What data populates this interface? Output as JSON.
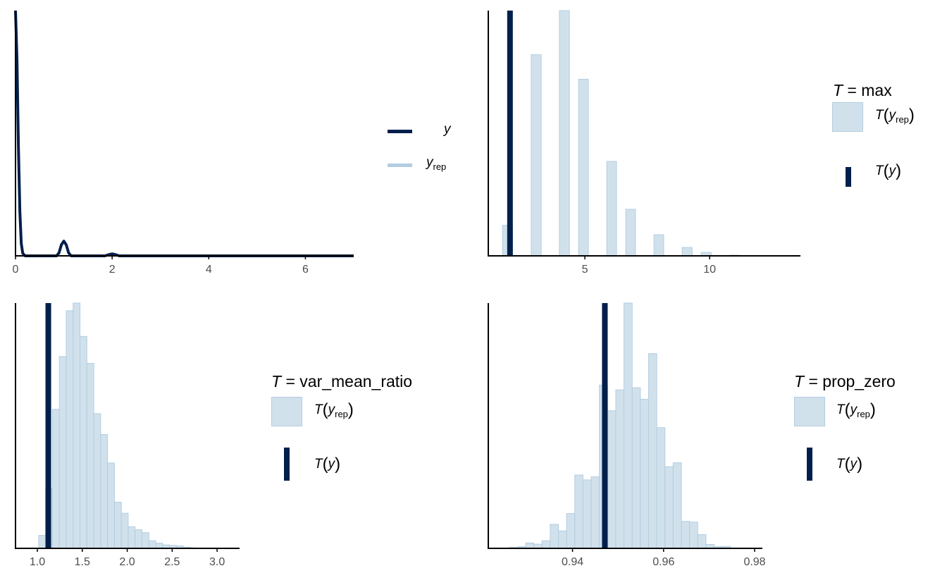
{
  "colors": {
    "dark": "#011f4b",
    "light_fill": "#d1e1ec",
    "light_line": "#b3cde0",
    "axis": "#000000",
    "tick_text": "#4d4d4d"
  },
  "chart_data": [
    {
      "type": "line",
      "name_key": "density-overlay",
      "xlim": [
        0,
        7
      ],
      "x_ticks": [
        "0",
        "2",
        "4",
        "6"
      ],
      "x_tick_values": [
        0,
        2,
        4,
        6
      ],
      "grid": false,
      "legend_placement": "right",
      "legend": {
        "y_label": "y",
        "yrep_label": "y",
        "yrep_sub": "rep"
      },
      "series": [
        {
          "role": "y",
          "color": "#011f4b",
          "x": [
            0,
            0.03,
            0.06,
            0.09,
            0.12,
            0.15,
            0.2,
            0.85,
            0.9,
            0.95,
            1.0,
            1.05,
            1.1,
            1.15,
            1.85,
            1.95,
            2.0,
            2.05,
            2.15,
            7
          ],
          "y": [
            1.0,
            0.8,
            0.45,
            0.18,
            0.05,
            0.01,
            0,
            0,
            0.012,
            0.045,
            0.06,
            0.045,
            0.012,
            0,
            0,
            0.006,
            0.008,
            0.006,
            0,
            0
          ]
        },
        {
          "role": "yrep",
          "color": "#b3cde0",
          "x": [
            0,
            0.03,
            0.06,
            0.09,
            0.12,
            0.15,
            0.2,
            0.85,
            0.9,
            0.95,
            1.0,
            1.05,
            1.1,
            1.15,
            1.85,
            1.95,
            2.0,
            2.05,
            2.15,
            7
          ],
          "y": [
            0.99,
            0.8,
            0.46,
            0.19,
            0.05,
            0.01,
            0,
            0,
            0.012,
            0.044,
            0.058,
            0.044,
            0.012,
            0,
            0,
            0.006,
            0.008,
            0.006,
            0,
            0
          ]
        }
      ]
    },
    {
      "type": "bar",
      "name_key": "stat-max",
      "xlim": [
        1.13,
        13.64
      ],
      "x_ticks": [
        "5",
        "10"
      ],
      "x_tick_values": [
        5,
        10
      ],
      "grid": false,
      "legend_placement": "right",
      "legend": {
        "title_symbol": "T",
        "title_text": " = max",
        "rep_label": "rep"
      },
      "observed_T_y": 2,
      "bins": [
        {
          "x0": 1.7,
          "x1": 2.1,
          "h": 0.124
        },
        {
          "x0": 2.85,
          "x1": 3.25,
          "h": 0.82
        },
        {
          "x0": 3.98,
          "x1": 4.38,
          "h": 1.0
        },
        {
          "x0": 4.75,
          "x1": 5.14,
          "h": 0.72
        },
        {
          "x0": 5.88,
          "x1": 6.27,
          "h": 0.385
        },
        {
          "x0": 6.64,
          "x1": 7.03,
          "h": 0.19
        },
        {
          "x0": 7.77,
          "x1": 8.16,
          "h": 0.086
        },
        {
          "x0": 8.9,
          "x1": 9.3,
          "h": 0.034
        },
        {
          "x0": 9.66,
          "x1": 10.06,
          "h": 0.014
        },
        {
          "x0": 10.8,
          "x1": 11.2,
          "h": 0.003
        }
      ]
    },
    {
      "type": "bar",
      "name_key": "stat-var-mean-ratio",
      "xlim": [
        0.757,
        3.25
      ],
      "x_ticks": [
        "1.0",
        "1.5",
        "2.0",
        "2.5",
        "3.0"
      ],
      "x_tick_values": [
        1.0,
        1.5,
        2.0,
        2.5,
        3.0
      ],
      "grid": false,
      "legend_placement": "right",
      "legend": {
        "title_symbol": "T",
        "title_text": " = var_mean_ratio",
        "rep_label": "rep"
      },
      "observed_T_y": 1.122,
      "bin_start": 1.015,
      "bin_width": 0.0766,
      "heights": [
        0.053,
        0.243,
        0.567,
        0.782,
        0.969,
        1.0,
        0.864,
        0.754,
        0.549,
        0.464,
        0.348,
        0.188,
        0.143,
        0.088,
        0.076,
        0.064,
        0.031,
        0.021,
        0.014,
        0.012,
        0.01,
        0.005,
        0.002
      ]
    },
    {
      "type": "bar",
      "name_key": "stat-prop-zero",
      "xlim": [
        0.9215,
        0.9817
      ],
      "x_ticks": [
        "0.94",
        "0.96",
        "0.98"
      ],
      "x_tick_values": [
        0.94,
        0.96,
        0.98
      ],
      "grid": false,
      "legend_placement": "right",
      "legend": {
        "title_symbol": "T",
        "title_text": " = prop_zero",
        "rep_label": "rep"
      },
      "observed_T_y": 0.9471,
      "bin_start": 0.9261,
      "bin_width": 0.0018,
      "heights": [
        0.004,
        0.007,
        0.022,
        0.017,
        0.031,
        0.098,
        0.071,
        0.142,
        0.299,
        0.279,
        0.292,
        0.666,
        0.561,
        0.646,
        1.0,
        0.655,
        0.608,
        0.794,
        0.492,
        0.333,
        0.349,
        0.11,
        0.107,
        0.056,
        0.016,
        0.007,
        0.008
      ]
    }
  ],
  "legend_common": {
    "T": "T",
    "y": "y",
    "open": "(",
    "close": ")"
  }
}
